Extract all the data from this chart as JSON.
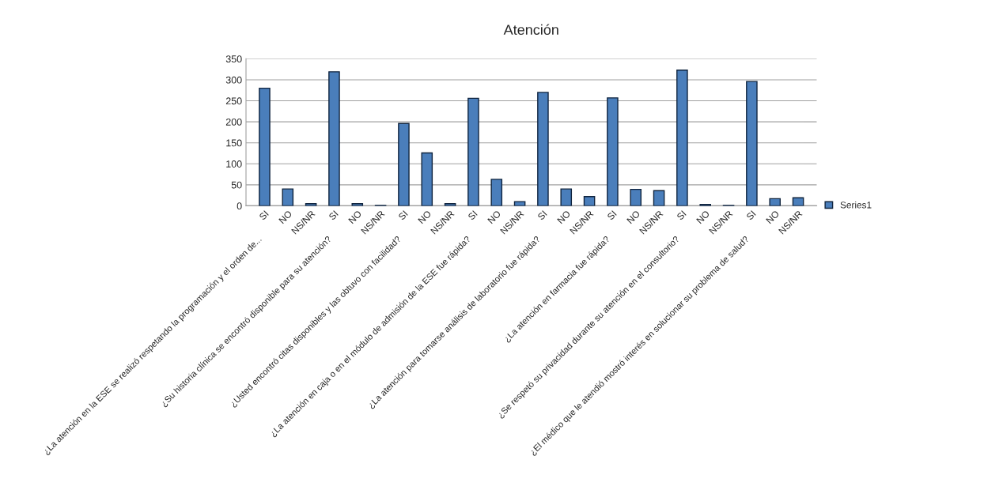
{
  "chart_data": {
    "type": "bar",
    "title": "Atención",
    "categories": [
      "SI",
      "NO",
      "NS/NR",
      "SI",
      "NO",
      "NS/NR",
      "SI",
      "NO",
      "NS/NR",
      "SI",
      "NO",
      "NS/NR",
      "SI",
      "NO",
      "NS/NR",
      "SI",
      "NO",
      "NS/NR",
      "SI",
      "NO",
      "NS/NR",
      "SI",
      "NO",
      "NS/NR"
    ],
    "series": [
      {
        "name": "Series1",
        "color": "#4a7ebb",
        "values": [
          280,
          40,
          5,
          319,
          5,
          1,
          196,
          126,
          5,
          256,
          63,
          10,
          270,
          40,
          22,
          257,
          39,
          36,
          323,
          3,
          1,
          296,
          17,
          19
        ]
      }
    ],
    "annotations": [
      "¿La atención en la ESE se realizó respetando la programación y el orden de...",
      "¿Su historia clínica se encontró disponible para su atención?",
      "¿Usted encontró citas disponibles y las obtuvo con facilidad?",
      "¿La atención en caja o en el módulo de admisión de la ESE fue rápida?",
      "¿La atención para tomarse análisis de laboratorio fue rápida?",
      "¿La atención en farmacia fue rápida?",
      "¿Se respetó su privacidad durante su atención en el consultorio?",
      "¿El médico que le atendió mostró interés en solucionar su problema de salud?"
    ],
    "ylim": [
      0,
      350
    ],
    "yticks": [
      0,
      50,
      100,
      150,
      200,
      250,
      300,
      350
    ],
    "grid": "y",
    "legend": "right"
  }
}
